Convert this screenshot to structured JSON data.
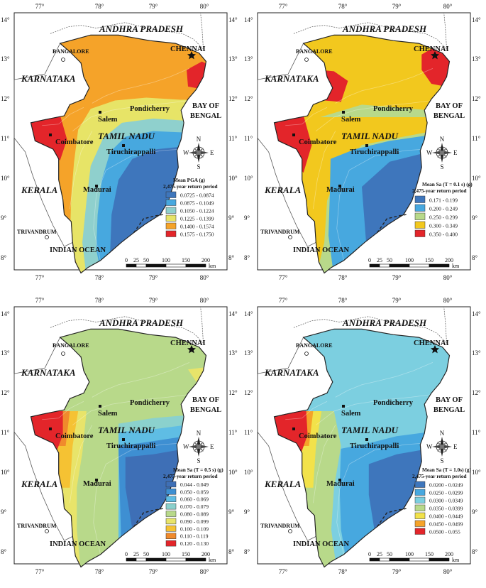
{
  "map_labels": {
    "states": {
      "andhra": "ANDHRA PRADESH",
      "karnataka": "KARNATAKA",
      "tamil": "TAMIL NADU",
      "kerala": "KERALA"
    },
    "cities": {
      "chennai": "CHENNAI",
      "bangalore": "BANGALORE",
      "pondicherry": "Pondicherry",
      "salem": "Salem",
      "coimbatore": "Coimbatore",
      "tiruchirappalli": "Tiruchirappalli",
      "madurai": "Madurai",
      "trivandrum": "TRIVANDRUM"
    },
    "bay_line1": "BAY OF",
    "bay_line2": "BENGAL",
    "ocean": "INDIAN OCEAN",
    "lon_ticks": [
      "77°",
      "78°",
      "79°",
      "80°"
    ],
    "lat_ticks": [
      "14°",
      "13°",
      "12°",
      "11°",
      "10°",
      "9°",
      "8°"
    ],
    "compass": {
      "n": "N",
      "s": "S",
      "e": "E",
      "w": "W"
    },
    "scale_ticks": [
      "0",
      "25",
      "50",
      "100",
      "150",
      "200"
    ],
    "scale_unit": "km"
  },
  "palettes": {
    "six": [
      "#3e76bc",
      "#47a8df",
      "#8fd0cd",
      "#e7e467",
      "#f5a329",
      "#e3252a"
    ],
    "five": [
      "#3e76bc",
      "#47a8df",
      "#b8d98a",
      "#f2c81e",
      "#e3252a"
    ],
    "nine": [
      "#3e6fb6",
      "#3e8fd2",
      "#5fbde4",
      "#8bd1cd",
      "#b8d98a",
      "#e8e46a",
      "#f5c233",
      "#f08a2c",
      "#e3252a"
    ],
    "seven": [
      "#3e76bc",
      "#47a8df",
      "#7ccfe0",
      "#b8d98a",
      "#f2e24a",
      "#f5a329",
      "#e3252a"
    ]
  },
  "panels": [
    {
      "legend_title1": "Mean PGA (g)",
      "legend_title2": "2,475-year return period",
      "legend_items": [
        "0.0725 - 0.0874",
        "0.0875 - 0.1049",
        "0.1050 - 0.1224",
        "0.1225 - 0.1399",
        "0.1400 - 0.1574",
        "0.1575 - 0.1750"
      ]
    },
    {
      "legend_title1": "Mean Sa (T = 0.1 s) (g)",
      "legend_title2": "2,475-year return period",
      "legend_items": [
        "0.171 - 0.199",
        "0.200 - 0.249",
        "0.250 - 0.299",
        "0.300 - 0.349",
        "0.350 - 0.400"
      ]
    },
    {
      "legend_title1": "Mean Sa (T = 0.5 s) (g)",
      "legend_title2": "2,475-year return period",
      "legend_items": [
        "0.044 - 0.049",
        "0.050 - 0.059",
        "0.060 - 0.069",
        "0.070 - 0.079",
        "0.080 - 0.089",
        "0.090 - 0.099",
        "0.100 - 0.109",
        "0.110 - 0.119",
        "0.120 - 0.130"
      ]
    },
    {
      "legend_title1": "Mean Sa (T = 1.0s) (g)",
      "legend_title2": "2,475-year return period",
      "legend_items": [
        "0.0200 - 0.0249",
        "0.0250 - 0.0299",
        "0.0300 - 0.0349",
        "0.0350 - 0.0399",
        "0.0400 - 0.0449",
        "0.0450 - 0.0499",
        "0.0500 - 0.055"
      ]
    }
  ]
}
